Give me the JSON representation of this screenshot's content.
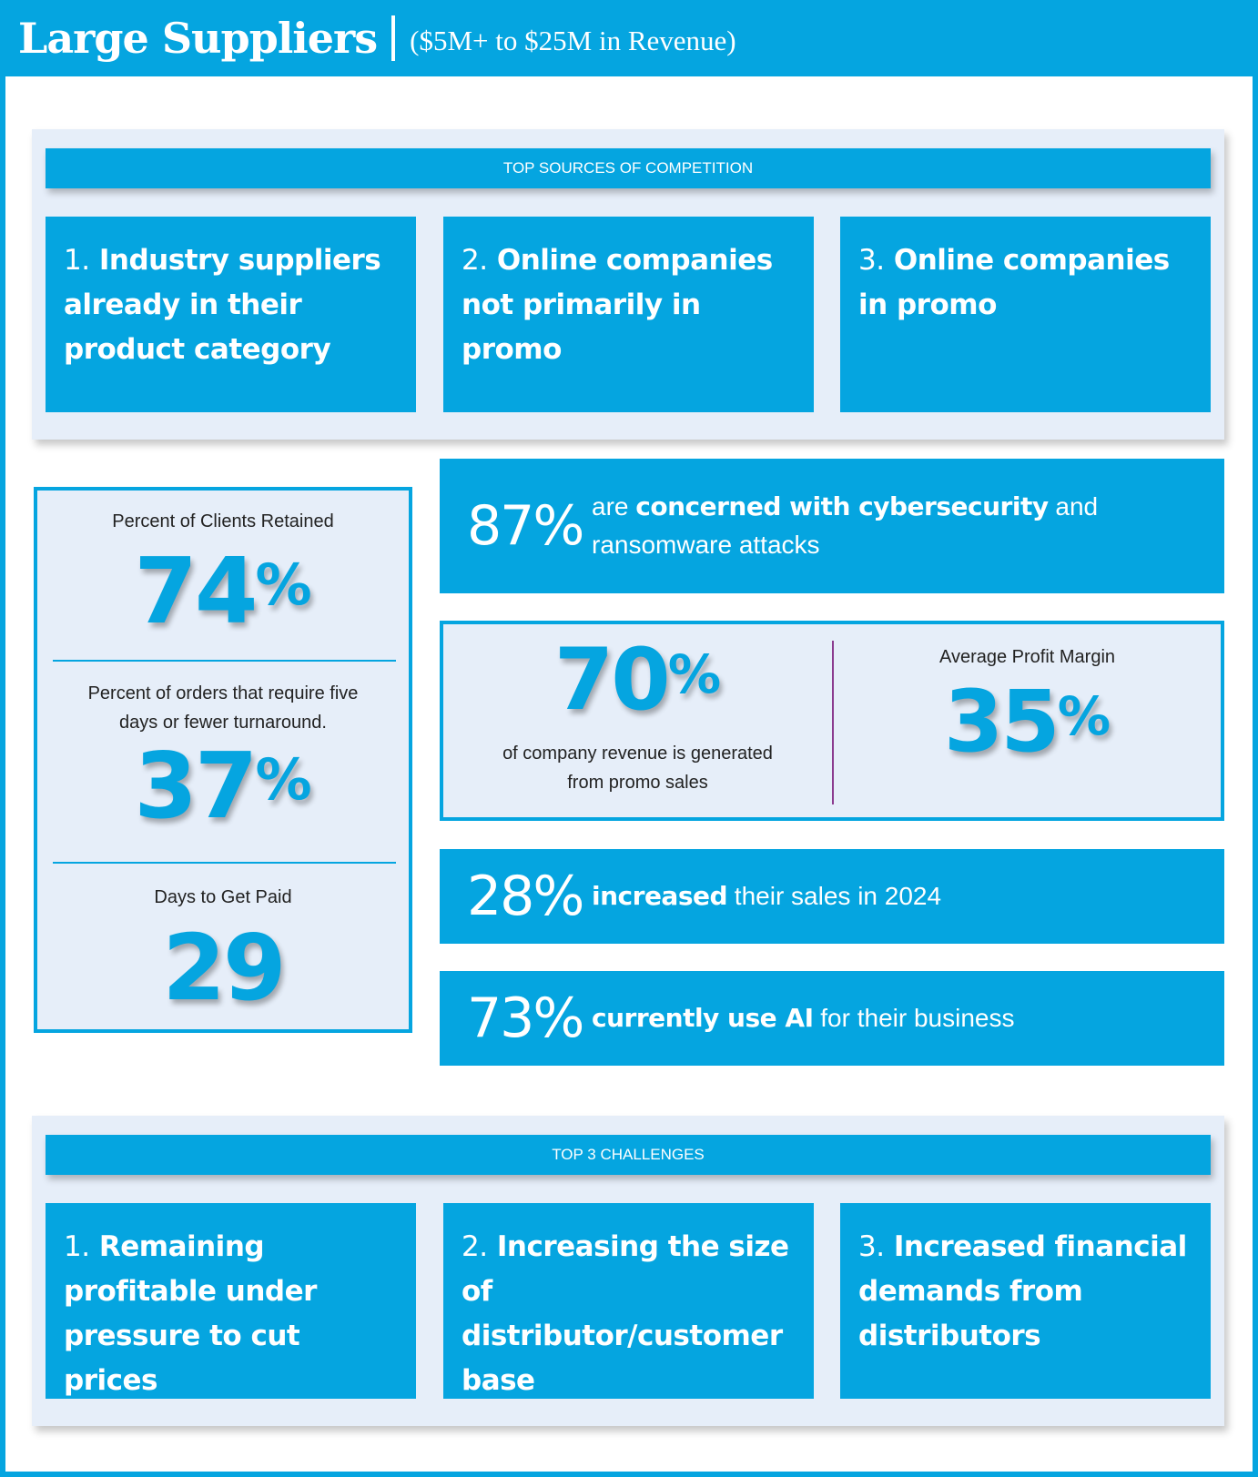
{
  "header": {
    "title": "Large Suppliers",
    "subtitle": "($5M+ to $25M in Revenue)"
  },
  "competition": {
    "heading": "TOP SOURCES OF COMPETITION",
    "items": [
      {
        "num": "1.",
        "text": "Industry suppliers already in their product category"
      },
      {
        "num": "2.",
        "text": "Online companies not primarily in promo"
      },
      {
        "num": "3.",
        "text": "Online companies in promo"
      }
    ]
  },
  "left_stats": {
    "retained_label": "Percent of Clients Retained",
    "retained_value": "74",
    "turnaround_label_1": "Percent of orders that require five",
    "turnaround_label_2": "days or fewer turnaround.",
    "turnaround_value": "37",
    "paid_label": "Days to Get Paid",
    "paid_value": "29",
    "percent_sign": "%"
  },
  "cyber": {
    "value": "87%",
    "pre": "are ",
    "bold": "concerned with cybersecurity",
    "post": " and",
    "line2": "ransomware attacks"
  },
  "revenue": {
    "value": "70",
    "label_1": "of company revenue is generated",
    "label_2": "from promo sales",
    "margin_label": "Average Profit Margin",
    "margin_value": "35",
    "percent_sign": "%"
  },
  "sales": {
    "value": "28%",
    "bold": "increased",
    "rest": " their sales in 2024"
  },
  "ai": {
    "value": "73%",
    "bold": "currently use AI",
    "rest": " for their business"
  },
  "challenges": {
    "heading": "TOP 3 CHALLENGES",
    "items": [
      {
        "num": "1.",
        "text": "Remaining profitable under pressure to cut prices"
      },
      {
        "num": "2.",
        "text": "Increasing the size of distributor/customer base"
      },
      {
        "num": "3.",
        "text": "Increased financial demands from distributors"
      }
    ]
  },
  "colors": {
    "accent": "#05a5e0",
    "panel_bg": "#e6eef9",
    "divider_purple": "#8b3b8f"
  }
}
